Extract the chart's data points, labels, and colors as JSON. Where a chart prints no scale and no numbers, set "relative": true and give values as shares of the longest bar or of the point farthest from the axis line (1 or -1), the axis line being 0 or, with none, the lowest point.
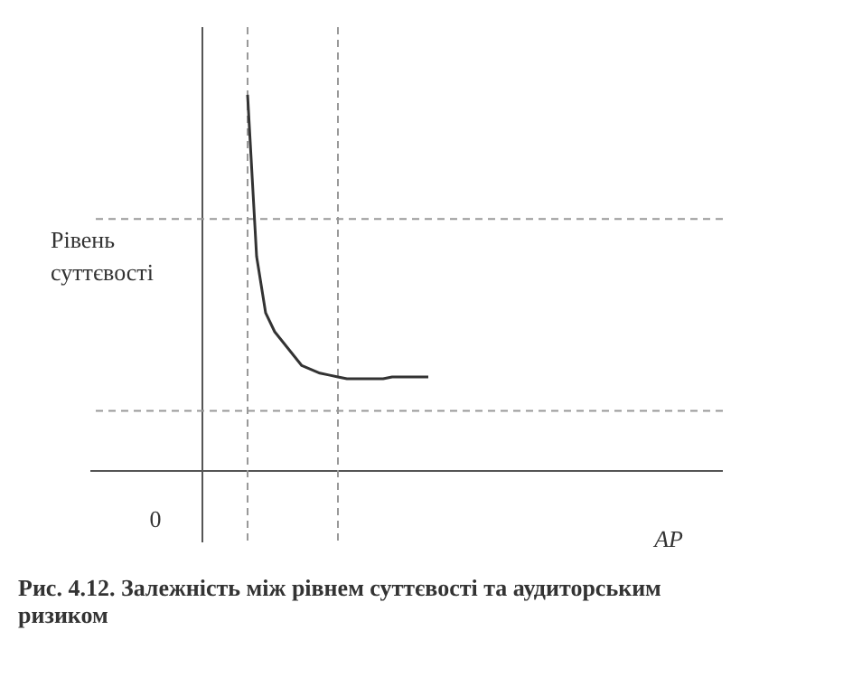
{
  "chart_data": {
    "type": "line",
    "relative": true,
    "title": "Рис. 4.12. Залежність між рівнем суттєвості та аудиторським ризиком",
    "ylabel": "Рівень суттєвості",
    "categories": [
      null,
      null,
      null,
      null,
      null,
      null,
      null,
      null,
      null,
      null,
      null,
      null,
      null,
      null,
      null,
      null,
      null,
      null,
      null,
      null,
      null
    ],
    "series": [
      {
        "color": "#333333",
        "values": [
          1.0,
          0.57,
          0.42,
          0.37,
          0.34,
          0.31,
          0.28,
          0.27,
          0.26,
          0.255,
          0.25,
          0.245,
          0.245,
          0.245,
          0.245,
          0.245,
          0.25,
          0.25,
          0.25,
          0.25,
          0.25
        ]
      }
    ],
    "annotations": [
      "0",
      "AP"
    ],
    "ref_lines": [
      {
        "axis": "y",
        "value": 0.67,
        "color": "#999999",
        "line_style": "dashed"
      },
      {
        "axis": "y",
        "value": 0.16,
        "color": "#999999",
        "line_style": "dashed"
      }
    ],
    "marker": "none",
    "line_style": "solid"
  }
}
